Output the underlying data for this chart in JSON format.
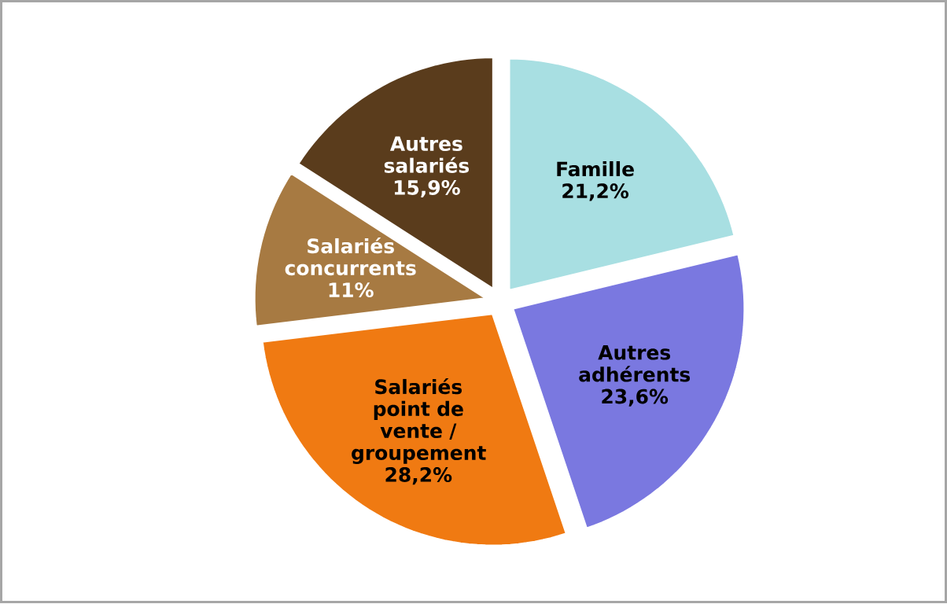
{
  "chart_data": {
    "type": "pie",
    "categories": [
      "Famille",
      "Autres adhérents",
      "Salariés point de vente / groupement",
      "Salariés concurrents",
      "Autres salariés"
    ],
    "values": [
      21.2,
      23.6,
      28.2,
      11,
      15.9
    ],
    "value_labels": [
      "21,2%",
      "23,6%",
      "28,2%",
      "11%",
      "15,9%"
    ],
    "colors": [
      "#a8dfe2",
      "#7a78e0",
      "#f07a12",
      "#a77a42",
      "#5a3c1c"
    ]
  }
}
